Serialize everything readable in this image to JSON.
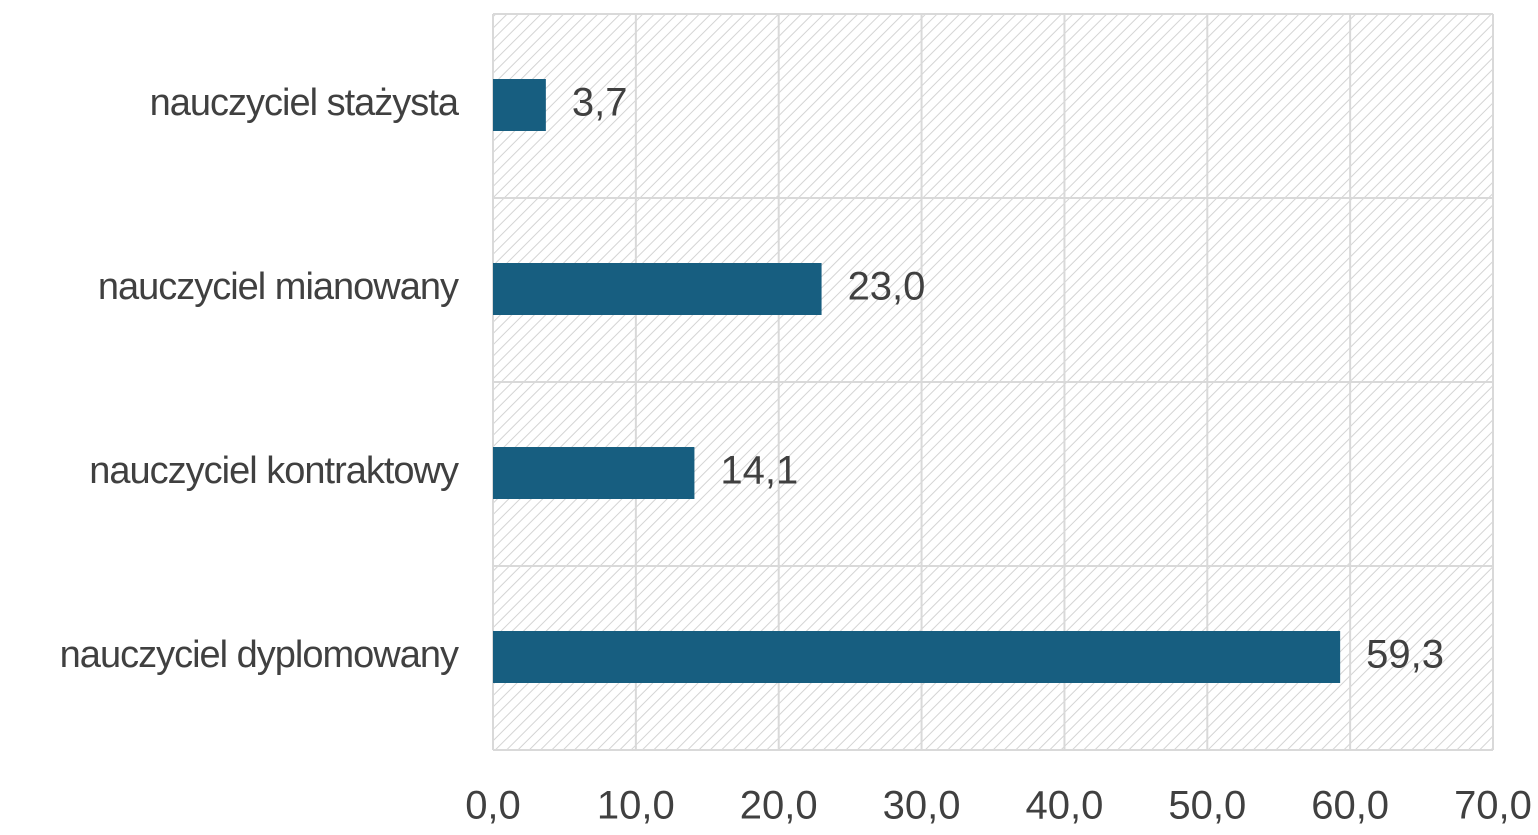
{
  "chart_data": {
    "type": "bar",
    "orientation": "horizontal",
    "categories": [
      "nauczyciel stażysta",
      "nauczyciel mianowany",
      "nauczyciel kontraktowy",
      "nauczyciel dyplomowany"
    ],
    "values": [
      3.7,
      23.0,
      14.1,
      59.3
    ],
    "value_labels": [
      "3,7",
      "23,0",
      "14,1",
      "59,3"
    ],
    "color": "#175e80",
    "xlim": [
      0,
      70
    ],
    "xticks": [
      {
        "value": 0,
        "label": "0,0"
      },
      {
        "value": 10,
        "label": "10,0"
      },
      {
        "value": 20,
        "label": "20,0"
      },
      {
        "value": 30,
        "label": "30,0"
      },
      {
        "value": 40,
        "label": "40,0"
      },
      {
        "value": 50,
        "label": "50,0"
      },
      {
        "value": 60,
        "label": "60,0"
      },
      {
        "value": 70,
        "label": "70,0"
      }
    ],
    "grid": true
  }
}
